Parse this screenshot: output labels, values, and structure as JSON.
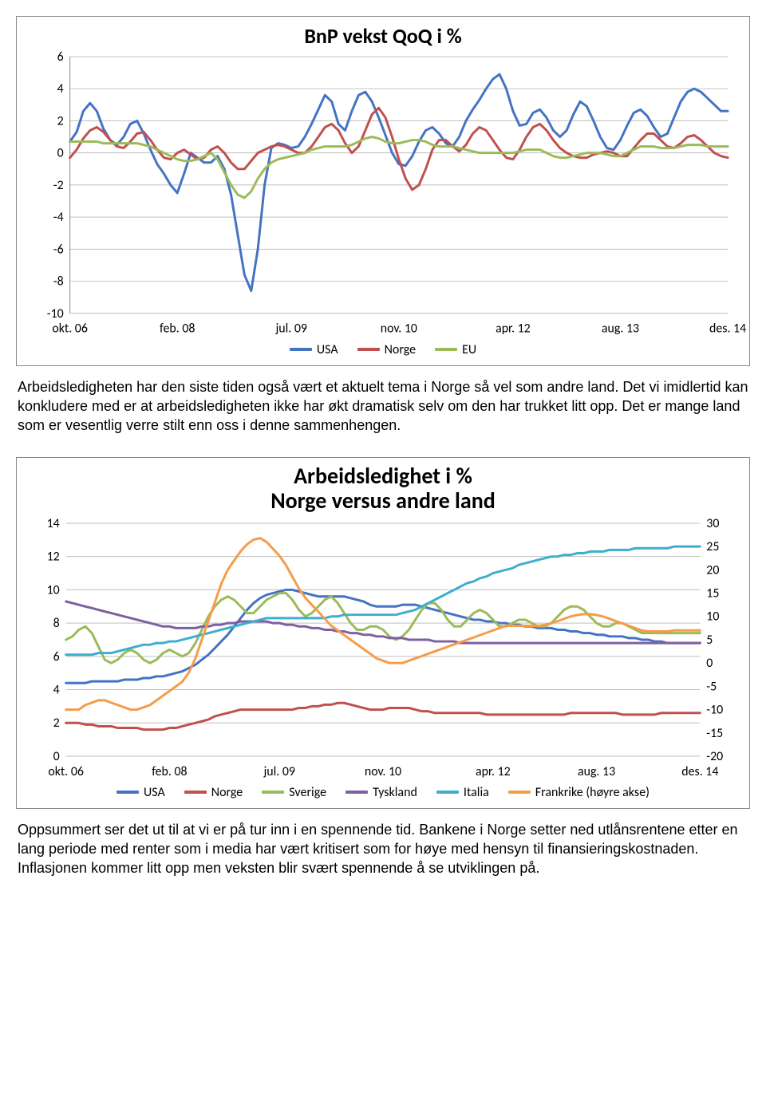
{
  "chart1": {
    "type": "line",
    "title": "BnP vekst QoQ i %",
    "title_fontsize": 26,
    "background_color": "#ffffff",
    "border_color": "#888888",
    "grid_color": "#bfbfbf",
    "line_width": 3,
    "x_labels": [
      "okt. 06",
      "feb. 08",
      "jul. 09",
      "nov. 10",
      "apr. 12",
      "aug. 13",
      "des. 14"
    ],
    "x_tick_positions": [
      0,
      16,
      33,
      49,
      66,
      82,
      98
    ],
    "ylim": [
      -10,
      6
    ],
    "ytick_step": 2,
    "series": [
      {
        "name": "USA",
        "color": "#4573c4",
        "y": [
          0.7,
          1.3,
          2.6,
          3.1,
          2.6,
          1.5,
          0.8,
          0.5,
          1.0,
          1.8,
          2.0,
          1.2,
          0.2,
          -0.7,
          -1.3,
          -2.0,
          -2.5,
          -1.3,
          0.0,
          -0.3,
          -0.6,
          -0.6,
          -0.2,
          -1.0,
          -2.6,
          -5.1,
          -7.6,
          -8.6,
          -6.0,
          -2.0,
          0.3,
          0.6,
          0.5,
          0.3,
          0.4,
          1.0,
          1.8,
          2.7,
          3.6,
          3.2,
          1.8,
          1.4,
          2.6,
          3.6,
          3.8,
          3.2,
          2.2,
          1.1,
          0.0,
          -0.7,
          -0.8,
          -0.2,
          0.7,
          1.4,
          1.6,
          1.2,
          0.6,
          0.4,
          1.0,
          2.0,
          2.7,
          3.3,
          4.0,
          4.6,
          4.9,
          4.0,
          2.6,
          1.7,
          1.8,
          2.5,
          2.7,
          2.2,
          1.4,
          1.0,
          1.4,
          2.4,
          3.2,
          2.9,
          2.0,
          1.0,
          0.3,
          0.2,
          0.8,
          1.7,
          2.5,
          2.7,
          2.3,
          1.6,
          1.0,
          1.2,
          2.2,
          3.2,
          3.8,
          4.0,
          3.8,
          3.4,
          3.0,
          2.6,
          2.6
        ]
      },
      {
        "name": "Norge",
        "color": "#c0504d",
        "y": [
          -0.3,
          0.2,
          0.9,
          1.4,
          1.6,
          1.3,
          0.8,
          0.4,
          0.3,
          0.7,
          1.2,
          1.3,
          0.8,
          0.2,
          -0.3,
          -0.4,
          0.0,
          0.2,
          -0.1,
          -0.4,
          -0.3,
          0.2,
          0.4,
          0.0,
          -0.6,
          -1.0,
          -1.0,
          -0.5,
          0.0,
          0.2,
          0.4,
          0.5,
          0.4,
          0.2,
          0.0,
          0.0,
          0.4,
          1.0,
          1.6,
          1.8,
          1.4,
          0.6,
          0.0,
          0.4,
          1.4,
          2.4,
          2.8,
          2.2,
          1.0,
          -0.4,
          -1.6,
          -2.3,
          -2.0,
          -1.0,
          0.2,
          0.8,
          0.8,
          0.4,
          0.1,
          0.5,
          1.2,
          1.6,
          1.4,
          0.8,
          0.2,
          -0.3,
          -0.4,
          0.2,
          1.0,
          1.6,
          1.8,
          1.4,
          0.8,
          0.3,
          0.0,
          -0.2,
          -0.3,
          -0.3,
          -0.1,
          0.0,
          0.1,
          0.0,
          -0.2,
          -0.2,
          0.3,
          0.8,
          1.2,
          1.2,
          0.8,
          0.4,
          0.3,
          0.6,
          1.0,
          1.1,
          0.8,
          0.4,
          0.0,
          -0.2,
          -0.3
        ]
      },
      {
        "name": "EU",
        "color": "#9bbb59",
        "y": [
          0.7,
          0.7,
          0.7,
          0.7,
          0.7,
          0.6,
          0.6,
          0.6,
          0.6,
          0.6,
          0.6,
          0.5,
          0.4,
          0.2,
          0.0,
          -0.2,
          -0.4,
          -0.5,
          -0.5,
          -0.4,
          -0.2,
          0.0,
          -0.4,
          -1.2,
          -2.0,
          -2.6,
          -2.8,
          -2.4,
          -1.6,
          -1.0,
          -0.6,
          -0.4,
          -0.3,
          -0.2,
          -0.1,
          0.0,
          0.2,
          0.3,
          0.4,
          0.4,
          0.4,
          0.4,
          0.5,
          0.7,
          0.9,
          1.0,
          0.9,
          0.7,
          0.6,
          0.6,
          0.7,
          0.8,
          0.8,
          0.7,
          0.5,
          0.4,
          0.4,
          0.4,
          0.3,
          0.2,
          0.1,
          0.0,
          0.0,
          0.0,
          0.0,
          0.0,
          0.0,
          0.1,
          0.2,
          0.2,
          0.2,
          0.0,
          -0.2,
          -0.3,
          -0.3,
          -0.2,
          -0.1,
          0.0,
          0.0,
          0.0,
          -0.1,
          -0.2,
          -0.2,
          0.0,
          0.2,
          0.4,
          0.4,
          0.4,
          0.3,
          0.3,
          0.3,
          0.4,
          0.5,
          0.5,
          0.5,
          0.4,
          0.4,
          0.4,
          0.4
        ]
      }
    ],
    "legend": [
      "USA",
      "Norge",
      "EU"
    ]
  },
  "paragraph1": "Arbeidsledigheten har den siste tiden også vært et aktuelt tema i Norge så vel som andre land. Det vi imidlertid kan konkludere med er at arbeidsledigheten ikke har økt dramatisk selv om den har trukket litt opp. Det er mange land som er vesentlig verre stilt enn oss i denne sammenhengen.",
  "chart2": {
    "type": "line_dual_axis",
    "title_line1": "Arbeidsledighet i %",
    "title_line2": "Norge versus andre land",
    "title_fontsize": 28,
    "background_color": "#ffffff",
    "border_color": "#888888",
    "grid_color": "#bfbfbf",
    "line_width": 3,
    "x_labels": [
      "okt. 06",
      "feb. 08",
      "jul. 09",
      "nov. 10",
      "apr. 12",
      "aug. 13",
      "des. 14"
    ],
    "x_tick_positions": [
      0,
      16,
      33,
      49,
      66,
      82,
      98
    ],
    "y_left": {
      "lim": [
        0,
        14
      ],
      "tick_step": 2
    },
    "y_right": {
      "lim": [
        -20,
        30
      ],
      "tick_step": 5
    },
    "series": [
      {
        "name": "USA",
        "axis": "left",
        "color": "#4573c4",
        "y": [
          4.4,
          4.4,
          4.4,
          4.4,
          4.5,
          4.5,
          4.5,
          4.5,
          4.5,
          4.6,
          4.6,
          4.6,
          4.7,
          4.7,
          4.8,
          4.8,
          4.9,
          5.0,
          5.1,
          5.3,
          5.5,
          5.8,
          6.1,
          6.5,
          6.9,
          7.3,
          7.8,
          8.3,
          8.8,
          9.2,
          9.5,
          9.7,
          9.8,
          9.9,
          10.0,
          10.0,
          9.9,
          9.8,
          9.7,
          9.6,
          9.6,
          9.6,
          9.6,
          9.6,
          9.5,
          9.4,
          9.3,
          9.1,
          9.0,
          9.0,
          9.0,
          9.0,
          9.1,
          9.1,
          9.1,
          9.0,
          8.9,
          8.8,
          8.7,
          8.6,
          8.5,
          8.4,
          8.3,
          8.2,
          8.2,
          8.1,
          8.1,
          8.0,
          8.0,
          7.9,
          7.9,
          7.8,
          7.8,
          7.7,
          7.7,
          7.7,
          7.6,
          7.6,
          7.5,
          7.5,
          7.4,
          7.4,
          7.3,
          7.3,
          7.2,
          7.2,
          7.2,
          7.1,
          7.1,
          7.0,
          7.0,
          6.9,
          6.9,
          6.8,
          6.8,
          6.8,
          6.8,
          6.8,
          6.8
        ]
      },
      {
        "name": "Norge",
        "axis": "left",
        "color": "#c0504d",
        "y": [
          2.0,
          2.0,
          2.0,
          1.9,
          1.9,
          1.8,
          1.8,
          1.8,
          1.7,
          1.7,
          1.7,
          1.7,
          1.6,
          1.6,
          1.6,
          1.6,
          1.7,
          1.7,
          1.8,
          1.9,
          2.0,
          2.1,
          2.2,
          2.4,
          2.5,
          2.6,
          2.7,
          2.8,
          2.8,
          2.8,
          2.8,
          2.8,
          2.8,
          2.8,
          2.8,
          2.8,
          2.9,
          2.9,
          3.0,
          3.0,
          3.1,
          3.1,
          3.2,
          3.2,
          3.1,
          3.0,
          2.9,
          2.8,
          2.8,
          2.8,
          2.9,
          2.9,
          2.9,
          2.9,
          2.8,
          2.7,
          2.7,
          2.6,
          2.6,
          2.6,
          2.6,
          2.6,
          2.6,
          2.6,
          2.6,
          2.5,
          2.5,
          2.5,
          2.5,
          2.5,
          2.5,
          2.5,
          2.5,
          2.5,
          2.5,
          2.5,
          2.5,
          2.5,
          2.6,
          2.6,
          2.6,
          2.6,
          2.6,
          2.6,
          2.6,
          2.6,
          2.5,
          2.5,
          2.5,
          2.5,
          2.5,
          2.5,
          2.6,
          2.6,
          2.6,
          2.6,
          2.6,
          2.6,
          2.6
        ]
      },
      {
        "name": "Sverige",
        "axis": "left",
        "color": "#9bbb59",
        "y": [
          7.0,
          7.2,
          7.6,
          7.8,
          7.4,
          6.6,
          5.8,
          5.6,
          5.8,
          6.2,
          6.4,
          6.2,
          5.8,
          5.6,
          5.8,
          6.2,
          6.4,
          6.2,
          6.0,
          6.2,
          6.8,
          7.6,
          8.4,
          9.0,
          9.4,
          9.6,
          9.4,
          9.0,
          8.6,
          8.6,
          9.0,
          9.4,
          9.6,
          9.8,
          9.8,
          9.4,
          8.8,
          8.4,
          8.6,
          9.0,
          9.4,
          9.6,
          9.2,
          8.6,
          8.0,
          7.6,
          7.6,
          7.8,
          7.8,
          7.6,
          7.2,
          7.0,
          7.2,
          7.6,
          8.2,
          8.8,
          9.2,
          9.2,
          8.8,
          8.2,
          7.8,
          7.8,
          8.2,
          8.6,
          8.8,
          8.6,
          8.2,
          7.8,
          7.8,
          8.0,
          8.2,
          8.2,
          8.0,
          7.8,
          7.8,
          8.0,
          8.4,
          8.8,
          9.0,
          9.0,
          8.8,
          8.4,
          8.0,
          7.8,
          7.8,
          8.0,
          8.0,
          7.8,
          7.6,
          7.4,
          7.4,
          7.4,
          7.4,
          7.4,
          7.4,
          7.4,
          7.4,
          7.4,
          7.4
        ]
      },
      {
        "name": "Tyskland",
        "axis": "left",
        "color": "#7e60a1",
        "y": [
          9.3,
          9.2,
          9.1,
          9.0,
          8.9,
          8.8,
          8.7,
          8.6,
          8.5,
          8.4,
          8.3,
          8.2,
          8.1,
          8.0,
          7.9,
          7.8,
          7.8,
          7.7,
          7.7,
          7.7,
          7.7,
          7.8,
          7.8,
          7.9,
          7.9,
          8.0,
          8.0,
          8.1,
          8.1,
          8.1,
          8.1,
          8.1,
          8.0,
          8.0,
          7.9,
          7.9,
          7.8,
          7.8,
          7.7,
          7.7,
          7.6,
          7.6,
          7.5,
          7.5,
          7.4,
          7.4,
          7.3,
          7.3,
          7.2,
          7.2,
          7.1,
          7.1,
          7.1,
          7.0,
          7.0,
          7.0,
          7.0,
          6.9,
          6.9,
          6.9,
          6.9,
          6.8,
          6.8,
          6.8,
          6.8,
          6.8,
          6.8,
          6.8,
          6.8,
          6.8,
          6.8,
          6.8,
          6.8,
          6.8,
          6.8,
          6.8,
          6.8,
          6.8,
          6.8,
          6.8,
          6.8,
          6.8,
          6.8,
          6.8,
          6.8,
          6.8,
          6.8,
          6.8,
          6.8,
          6.8,
          6.8,
          6.8,
          6.8,
          6.8,
          6.8,
          6.8,
          6.8,
          6.8,
          6.8
        ]
      },
      {
        "name": "Italia",
        "axis": "left",
        "color": "#3daecd",
        "y": [
          6.1,
          6.1,
          6.1,
          6.1,
          6.1,
          6.2,
          6.2,
          6.2,
          6.3,
          6.4,
          6.5,
          6.6,
          6.7,
          6.7,
          6.8,
          6.8,
          6.9,
          6.9,
          7.0,
          7.1,
          7.2,
          7.3,
          7.4,
          7.5,
          7.6,
          7.7,
          7.8,
          7.9,
          8.0,
          8.1,
          8.2,
          8.3,
          8.3,
          8.3,
          8.3,
          8.3,
          8.3,
          8.3,
          8.3,
          8.3,
          8.3,
          8.4,
          8.4,
          8.5,
          8.5,
          8.5,
          8.5,
          8.5,
          8.5,
          8.5,
          8.5,
          8.5,
          8.6,
          8.7,
          8.8,
          9.0,
          9.2,
          9.4,
          9.6,
          9.8,
          10.0,
          10.2,
          10.4,
          10.5,
          10.7,
          10.8,
          11.0,
          11.1,
          11.2,
          11.3,
          11.5,
          11.6,
          11.7,
          11.8,
          11.9,
          12.0,
          12.0,
          12.1,
          12.1,
          12.2,
          12.2,
          12.3,
          12.3,
          12.3,
          12.4,
          12.4,
          12.4,
          12.4,
          12.5,
          12.5,
          12.5,
          12.5,
          12.5,
          12.5,
          12.6,
          12.6,
          12.6,
          12.6,
          12.6
        ]
      },
      {
        "name": "Frankrike (høyre akse)",
        "axis": "right",
        "color": "#f59c4a",
        "y": [
          -10,
          -10,
          -10,
          -9,
          -8.5,
          -8,
          -8,
          -8.5,
          -9,
          -9.5,
          -10,
          -10,
          -9.5,
          -9,
          -8,
          -7,
          -6,
          -5,
          -4,
          -2,
          1,
          5,
          9,
          13,
          17,
          20,
          22,
          24,
          25.5,
          26.5,
          26.8,
          26.0,
          24.5,
          23.0,
          21.0,
          18.5,
          16.0,
          14.0,
          12.5,
          11.0,
          9.5,
          8.0,
          7.0,
          6.0,
          5.0,
          4.0,
          3.0,
          2.0,
          1.0,
          0.5,
          0.0,
          0.0,
          0.0,
          0.5,
          1.0,
          1.5,
          2.0,
          2.5,
          3.0,
          3.5,
          4.0,
          4.5,
          5.0,
          5.5,
          6.0,
          6.5,
          7.0,
          7.5,
          8.0,
          8.0,
          8.0,
          8.0,
          8.0,
          8.0,
          8.2,
          8.5,
          9.0,
          9.5,
          10.0,
          10.3,
          10.5,
          10.5,
          10.3,
          10.0,
          9.5,
          9.0,
          8.5,
          8.0,
          7.5,
          7.0,
          6.8,
          6.8,
          6.8,
          6.8,
          7.0,
          7.0,
          7.0,
          7.0,
          7.0
        ]
      }
    ],
    "legend": [
      "USA",
      "Norge",
      "Sverige",
      "Tyskland",
      "Italia",
      "Frankrike (høyre akse)"
    ]
  },
  "paragraph2": "Oppsummert ser det ut til at vi er på tur inn i en spennende tid. Bankene i Norge setter ned utlånsrentene etter en lang periode med renter som i media har vært kritisert som for høye med hensyn til finansieringskostnaden. Inflasjonen kommer litt opp men veksten blir svært spennende å se utviklingen på."
}
